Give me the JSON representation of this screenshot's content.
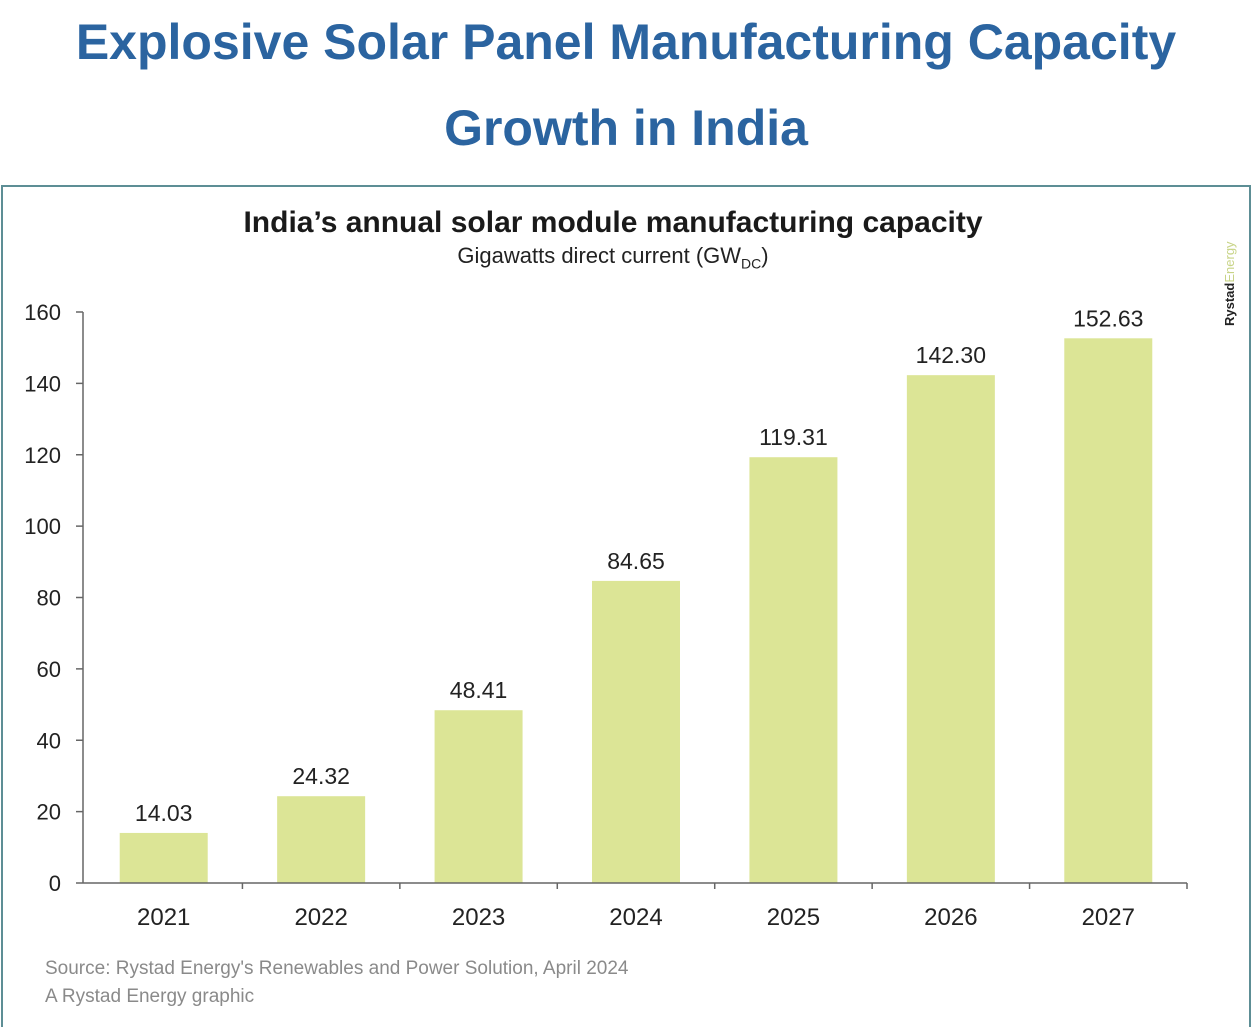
{
  "headline": {
    "line1": "Explosive Solar Panel Manufacturing Capacity",
    "line2": "Growth in India"
  },
  "brand": {
    "bold": "Rystad",
    "light": "Energy"
  },
  "source": {
    "line1": "Source: Rystad Energy's Renewables and Power Solution, April 2024",
    "line2": "A Rystad Energy graphic"
  },
  "colors": {
    "bar": "#dce596",
    "headline": "#2b64a0",
    "border": "#5d8e95"
  },
  "chart_data": {
    "type": "bar",
    "title": "India’s annual solar module manufacturing capacity",
    "subtitle": "Gigawatts direct current (GW",
    "subtitle_sub": "DC",
    "subtitle_end": ")",
    "categories": [
      "2021",
      "2022",
      "2023",
      "2024",
      "2025",
      "2026",
      "2027"
    ],
    "values": [
      14.03,
      24.32,
      48.41,
      84.65,
      119.31,
      142.3,
      152.63
    ],
    "value_labels": [
      "14.03",
      "24.32",
      "48.41",
      "84.65",
      "119.31",
      "142.30",
      "152.63"
    ],
    "ylim": [
      0,
      160
    ],
    "yticks": [
      0,
      20,
      40,
      60,
      80,
      100,
      120,
      140,
      160
    ],
    "grid": false,
    "legend": "none"
  }
}
